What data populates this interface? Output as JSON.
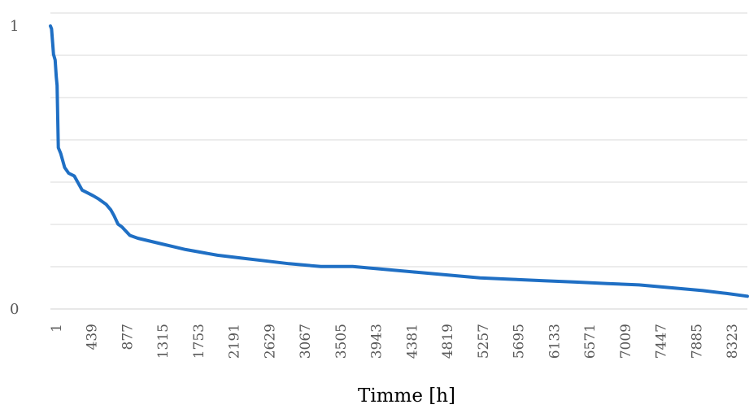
{
  "chart_data": {
    "type": "line",
    "title": "",
    "xlabel": "Timme [h]",
    "ylabel": "",
    "x_categories": [
      "1",
      "439",
      "877",
      "1315",
      "1753",
      "2191",
      "2629",
      "3067",
      "3505",
      "3943",
      "4381",
      "4819",
      "5257",
      "5695",
      "6133",
      "6571",
      "7009",
      "7447",
      "7885",
      "8323"
    ],
    "xlim": [
      1,
      8760
    ],
    "ylim": [
      0,
      1
    ],
    "y_ticks": [
      "0",
      "1"
    ],
    "grid": true,
    "legend": "none",
    "series": [
      {
        "color": "#1f6fc4",
        "x": [
          1,
          15,
          40,
          60,
          75,
          85,
          100,
          130,
          180,
          230,
          300,
          400,
          470,
          540,
          600,
          700,
          760,
          800,
          850,
          900,
          1000,
          1100,
          1250,
          1400,
          1550,
          1700,
          1900,
          2100,
          2400,
          2700,
          3000,
          3400,
          3800,
          4200,
          4600,
          5000,
          5400,
          5800,
          6200,
          6600,
          7000,
          7400,
          7800,
          8200,
          8500,
          8760
        ],
        "y": [
          1.0,
          0.99,
          0.9,
          0.88,
          0.82,
          0.79,
          0.57,
          0.55,
          0.5,
          0.48,
          0.47,
          0.42,
          0.41,
          0.4,
          0.39,
          0.37,
          0.35,
          0.33,
          0.3,
          0.29,
          0.26,
          0.25,
          0.24,
          0.23,
          0.22,
          0.21,
          0.2,
          0.19,
          0.18,
          0.17,
          0.16,
          0.15,
          0.15,
          0.14,
          0.13,
          0.12,
          0.11,
          0.105,
          0.1,
          0.095,
          0.09,
          0.085,
          0.075,
          0.065,
          0.055,
          0.045
        ]
      }
    ]
  }
}
